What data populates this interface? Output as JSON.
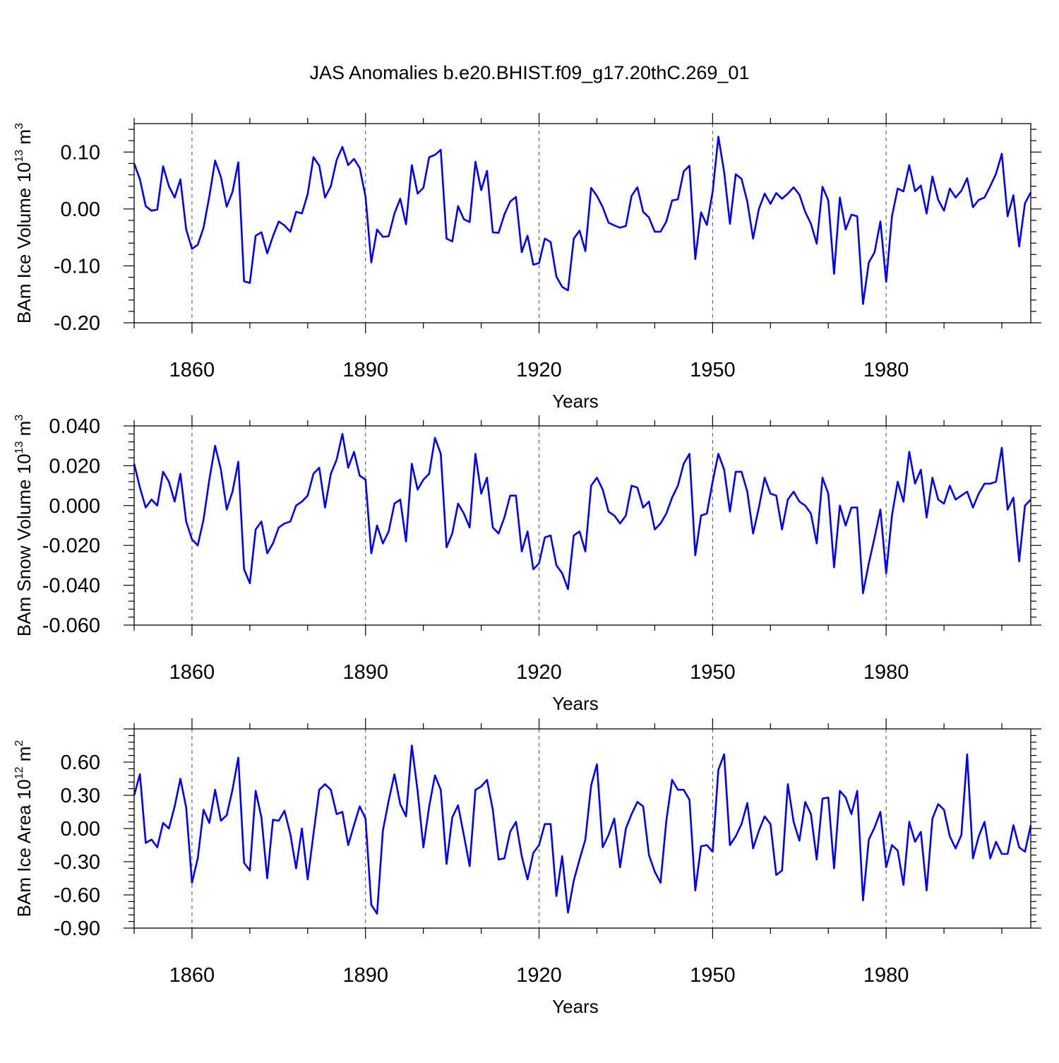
{
  "title": "JAS Anomalies b.e20.BHIST.f09_g17.20thC.269_01",
  "line_color": "#0000ff",
  "chart_data": [
    {
      "type": "line",
      "title": "JAS Anomalies b.e20.BHIST.f09_g17.20thC.269_01",
      "ylabel_main": "BAm Ice Volume 10",
      "ylabel_exp": "13",
      "ylabel_unit": " m",
      "ylabel_unit_exp": "3",
      "xlabel": "Years",
      "xlim": [
        1850,
        2005
      ],
      "ylim": [
        -0.2,
        0.15
      ],
      "xticks": [
        1860,
        1890,
        1920,
        1950,
        1980
      ],
      "xtick_labels": [
        "1860",
        "1890",
        "1920",
        "1950",
        "1980"
      ],
      "yticks": [
        -0.2,
        -0.1,
        0.0,
        0.1
      ],
      "ytick_labels": [
        "-0.20",
        "-0.10",
        "0.00",
        "0.10"
      ],
      "x_start": 1850,
      "values": [
        0.08,
        0.052,
        0.005,
        -0.003,
        -0.001,
        0.075,
        0.04,
        0.02,
        0.052,
        -0.036,
        -0.07,
        -0.063,
        -0.033,
        0.022,
        0.085,
        0.056,
        0.004,
        0.03,
        0.082,
        -0.127,
        -0.13,
        -0.047,
        -0.041,
        -0.078,
        -0.048,
        -0.022,
        -0.029,
        -0.04,
        -0.005,
        -0.008,
        0.026,
        0.091,
        0.076,
        0.02,
        0.04,
        0.086,
        0.109,
        0.077,
        0.088,
        0.072,
        0.022,
        -0.094,
        -0.036,
        -0.049,
        -0.048,
        -0.008,
        0.018,
        -0.027,
        0.077,
        0.027,
        0.037,
        0.091,
        0.095,
        0.104,
        -0.052,
        -0.057,
        0.005,
        -0.018,
        -0.023,
        0.083,
        0.033,
        0.067,
        -0.041,
        -0.042,
        -0.01,
        0.013,
        0.021,
        -0.076,
        -0.047,
        -0.098,
        -0.095,
        -0.052,
        -0.058,
        -0.119,
        -0.137,
        -0.143,
        -0.052,
        -0.038,
        -0.074,
        0.037,
        0.023,
        0.003,
        -0.024,
        -0.029,
        -0.033,
        -0.03,
        0.023,
        0.038,
        -0.005,
        -0.015,
        -0.04,
        -0.04,
        -0.022,
        0.015,
        0.017,
        0.066,
        0.076,
        -0.088,
        -0.006,
        -0.028,
        0.03,
        0.127,
        0.065,
        -0.026,
        0.061,
        0.053,
        0.013,
        -0.052,
        0.0,
        0.027,
        0.009,
        0.028,
        0.018,
        0.027,
        0.038,
        0.025,
        -0.005,
        -0.026,
        -0.061,
        0.039,
        0.015,
        -0.114,
        0.02,
        -0.036,
        -0.01,
        -0.013,
        -0.167,
        -0.094,
        -0.076,
        -0.022,
        -0.128,
        -0.013,
        0.036,
        0.031,
        0.077,
        0.031,
        0.041,
        -0.008,
        0.057,
        0.016,
        -0.003,
        0.036,
        0.02,
        0.032,
        0.054,
        0.003,
        0.016,
        0.02,
        0.04,
        0.062,
        0.097,
        -0.013,
        0.024,
        -0.066,
        0.01,
        0.029
      ]
    },
    {
      "type": "line",
      "ylabel_main": "BAm Snow Volume 10",
      "ylabel_exp": "13",
      "ylabel_unit": " m",
      "ylabel_unit_exp": "3",
      "xlabel": "Years",
      "xlim": [
        1850,
        2005
      ],
      "ylim": [
        -0.06,
        0.04
      ],
      "xticks": [
        1860,
        1890,
        1920,
        1950,
        1980
      ],
      "xtick_labels": [
        "1860",
        "1890",
        "1920",
        "1950",
        "1980"
      ],
      "yticks": [
        -0.06,
        -0.04,
        -0.02,
        0.0,
        0.02,
        0.04
      ],
      "ytick_labels": [
        "-0.060",
        "-0.040",
        "-0.020",
        "0.000",
        "0.020",
        "0.040"
      ],
      "x_start": 1850,
      "values": [
        0.021,
        0.009,
        -0.001,
        0.003,
        0.0,
        0.017,
        0.012,
        0.002,
        0.016,
        -0.008,
        -0.017,
        -0.02,
        -0.007,
        0.013,
        0.03,
        0.018,
        -0.002,
        0.007,
        0.022,
        -0.032,
        -0.039,
        -0.012,
        -0.008,
        -0.024,
        -0.019,
        -0.011,
        -0.009,
        -0.008,
        0.0,
        0.002,
        0.005,
        0.016,
        0.019,
        -0.001,
        0.016,
        0.023,
        0.036,
        0.019,
        0.027,
        0.015,
        0.013,
        -0.024,
        -0.01,
        -0.019,
        -0.013,
        0.001,
        0.003,
        -0.018,
        0.021,
        0.008,
        0.013,
        0.016,
        0.034,
        0.026,
        -0.021,
        -0.014,
        0.001,
        -0.004,
        -0.011,
        0.026,
        0.006,
        0.014,
        -0.011,
        -0.014,
        -0.006,
        0.005,
        0.005,
        -0.023,
        -0.013,
        -0.032,
        -0.029,
        -0.016,
        -0.015,
        -0.03,
        -0.034,
        -0.042,
        -0.015,
        -0.013,
        -0.023,
        0.01,
        0.014,
        0.008,
        -0.003,
        -0.005,
        -0.009,
        -0.005,
        0.01,
        0.009,
        -0.001,
        0.002,
        -0.012,
        -0.009,
        -0.004,
        0.004,
        0.01,
        0.021,
        0.026,
        -0.025,
        -0.005,
        -0.004,
        0.012,
        0.026,
        0.018,
        -0.003,
        0.017,
        0.017,
        0.007,
        -0.014,
        -0.001,
        0.014,
        0.006,
        0.005,
        -0.012,
        0.003,
        0.007,
        0.002,
        0.0,
        -0.004,
        -0.019,
        0.014,
        0.006,
        -0.031,
        0.0,
        -0.01,
        -0.001,
        -0.001,
        -0.044,
        -0.029,
        -0.016,
        -0.002,
        -0.034,
        -0.005,
        0.012,
        0.002,
        0.027,
        0.011,
        0.018,
        -0.006,
        0.014,
        0.003,
        0.001,
        0.01,
        0.003,
        0.005,
        0.007,
        -0.001,
        0.006,
        0.011,
        0.011,
        0.012,
        0.029,
        -0.002,
        0.004,
        -0.028,
        0.0,
        0.003
      ]
    },
    {
      "type": "line",
      "ylabel_main": "BAm Ice Area 10",
      "ylabel_exp": "12",
      "ylabel_unit": " m",
      "ylabel_unit_exp": "2",
      "xlabel": "Years",
      "xlim": [
        1850,
        2005
      ],
      "ylim": [
        -0.9,
        0.9
      ],
      "xticks": [
        1860,
        1890,
        1920,
        1950,
        1980
      ],
      "xtick_labels": [
        "1860",
        "1890",
        "1920",
        "1950",
        "1980"
      ],
      "yticks": [
        -0.9,
        -0.6,
        -0.3,
        0.0,
        0.3,
        0.6
      ],
      "ytick_labels": [
        "-0.90",
        "-0.60",
        "-0.30",
        "0.00",
        "0.30",
        "0.60"
      ],
      "x_start": 1850,
      "values": [
        0.3,
        0.49,
        -0.13,
        -0.1,
        -0.17,
        0.05,
        0.0,
        0.2,
        0.45,
        0.19,
        -0.49,
        -0.27,
        0.17,
        0.05,
        0.35,
        0.07,
        0.12,
        0.35,
        0.64,
        -0.31,
        -0.38,
        0.34,
        0.1,
        -0.45,
        0.08,
        0.07,
        0.16,
        -0.05,
        -0.36,
        0.0,
        -0.46,
        -0.05,
        0.35,
        0.4,
        0.35,
        0.13,
        0.15,
        -0.15,
        0.03,
        0.2,
        0.09,
        -0.69,
        -0.77,
        -0.02,
        0.25,
        0.49,
        0.22,
        0.11,
        0.75,
        0.34,
        -0.17,
        0.2,
        0.48,
        0.35,
        -0.32,
        0.1,
        0.21,
        -0.06,
        -0.34,
        0.35,
        0.38,
        0.44,
        0.17,
        -0.28,
        -0.27,
        -0.03,
        0.06,
        -0.25,
        -0.46,
        -0.22,
        -0.15,
        0.04,
        0.04,
        -0.61,
        -0.25,
        -0.76,
        -0.47,
        -0.28,
        -0.1,
        0.39,
        0.58,
        -0.17,
        -0.06,
        0.09,
        -0.35,
        0.0,
        0.13,
        0.24,
        0.2,
        -0.24,
        -0.39,
        -0.49,
        0.07,
        0.44,
        0.35,
        0.35,
        0.26,
        -0.56,
        -0.16,
        -0.15,
        -0.21,
        0.53,
        0.67,
        -0.15,
        -0.07,
        0.04,
        0.23,
        -0.18,
        -0.02,
        0.11,
        0.04,
        -0.42,
        -0.38,
        0.4,
        0.06,
        -0.11,
        0.24,
        0.13,
        -0.28,
        0.27,
        0.28,
        -0.36,
        0.34,
        0.28,
        0.13,
        0.34,
        -0.65,
        -0.1,
        0.01,
        0.15,
        -0.35,
        -0.15,
        -0.2,
        -0.51,
        0.06,
        -0.12,
        -0.03,
        -0.56,
        0.09,
        0.22,
        0.17,
        -0.07,
        -0.18,
        -0.06,
        0.67,
        -0.27,
        -0.07,
        0.06,
        -0.27,
        -0.12,
        -0.23,
        -0.23,
        0.03,
        -0.17,
        -0.21,
        0.03
      ]
    }
  ]
}
